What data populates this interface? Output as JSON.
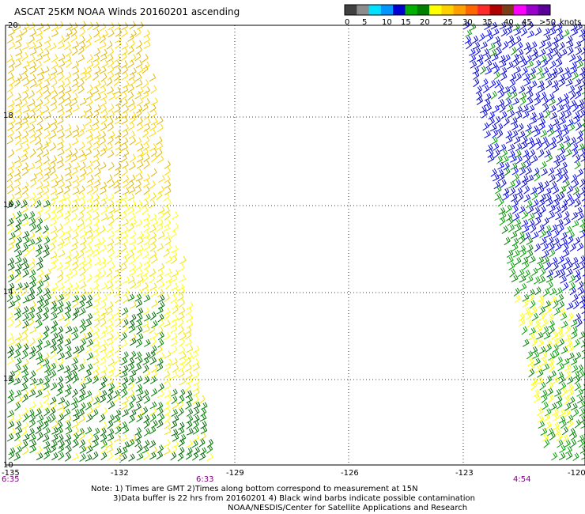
{
  "title": "ASCAT 25KM NOAA Winds 20160201  ascending",
  "colorbar": {
    "colors": [
      "#404040",
      "#8c8c8c",
      "#00e0ff",
      "#0096ff",
      "#0000d0",
      "#00b000",
      "#008000",
      "#ffff00",
      "#ffd000",
      "#ffa000",
      "#ff6600",
      "#ff2a2a",
      "#b00000",
      "#7a3d1a",
      "#ff00ff",
      "#9900cc",
      "#5a0099"
    ],
    "labels": [
      "0",
      "5",
      "10",
      "15",
      "20",
      "25",
      "30",
      "35",
      "40",
      "45",
      ">50",
      "knots"
    ]
  },
  "axes": {
    "lon_ticks": [
      "-135",
      "-132",
      "-129",
      "-126",
      "-123",
      "-120"
    ],
    "lat_ticks": [
      "20",
      "18",
      "16",
      "14",
      "12",
      "10"
    ],
    "time_labels": [
      "6:35",
      "6:33",
      "4:54"
    ]
  },
  "notes": [
    "Note: 1) Times are GMT 2)Times along bottom correspond to measurement at 15N",
    "3)Data buffer is 22 hrs from 20160201 4) Black wind barbs indicate possible contamination",
    "NOAA/NESDIS/Center for Satellite Applications and Research"
  ],
  "chart_data": {
    "type": "map",
    "projection": "lat-lon",
    "lon_range": [
      -135,
      -120
    ],
    "lat_range": [
      10,
      20
    ],
    "grid": "dotted",
    "legend": "top-right colorbar",
    "units": "knots",
    "swaths": [
      {
        "name": "swath-west",
        "time": "6:35 / 6:33",
        "colors": [
          "yellow",
          "gold",
          "green",
          "dark-green"
        ]
      },
      {
        "name": "swath-east",
        "time": "4:54",
        "colors": [
          "green",
          "blue",
          "yellow"
        ]
      }
    ]
  }
}
